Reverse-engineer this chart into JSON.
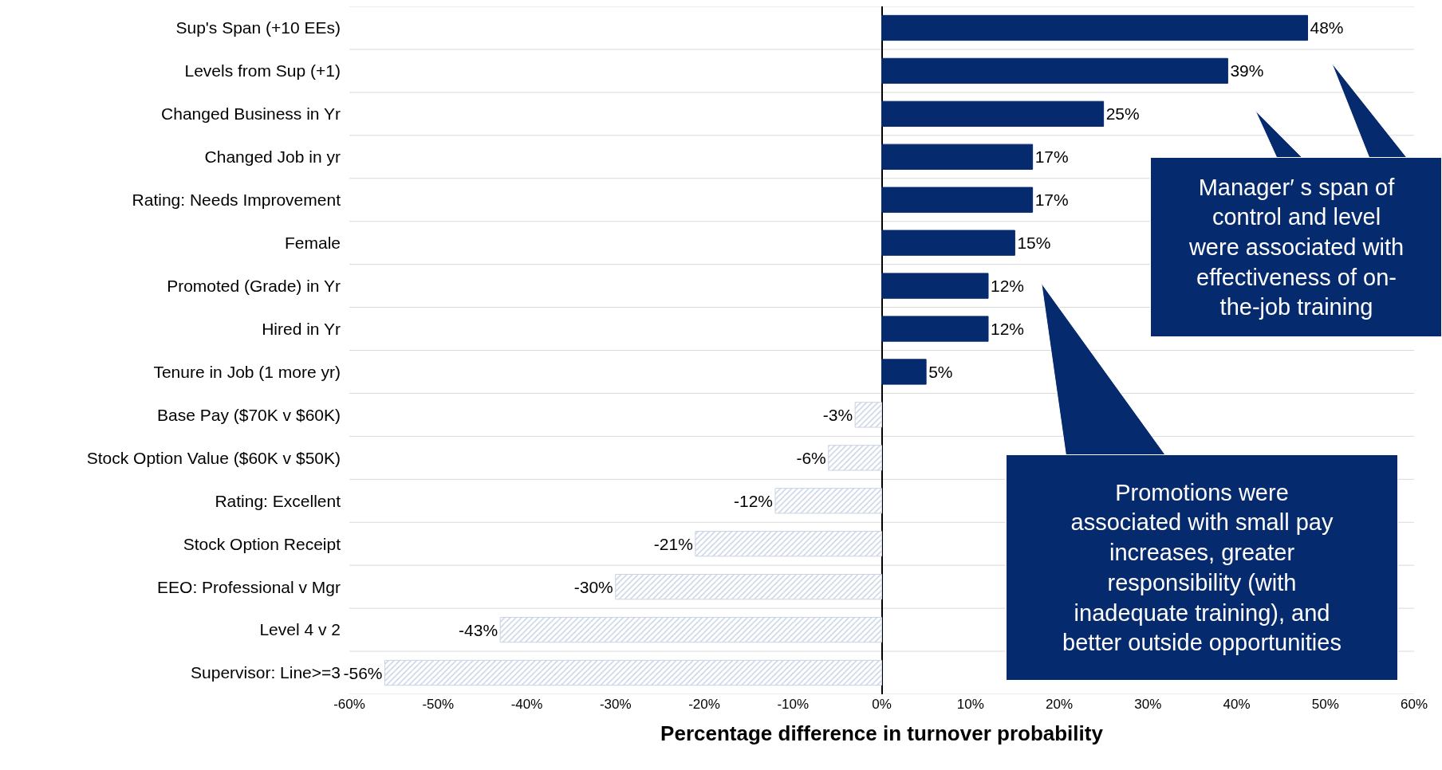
{
  "chart_data": {
    "type": "bar",
    "orientation": "horizontal",
    "categories": [
      "Sup's Span (+10 EEs)",
      "Levels from Sup (+1)",
      "Changed Business in Yr",
      "Changed Job in yr",
      "Rating: Needs Improvement",
      "Female",
      "Promoted (Grade) in Yr",
      "Hired in Yr",
      "Tenure in Job (1 more yr)",
      "Base Pay ($70K v $60K)",
      "Stock Option Value ($60K v $50K)",
      "Rating: Excellent",
      "Stock Option Receipt",
      "EEO: Professional v Mgr",
      "Level 4 v 2",
      "Supervisor: Line>=3"
    ],
    "values": [
      48,
      39,
      25,
      17,
      17,
      15,
      12,
      12,
      5,
      -3,
      -6,
      -12,
      -21,
      -30,
      -43,
      -56
    ],
    "value_labels": [
      "48%",
      "39%",
      "25%",
      "17%",
      "17%",
      "15%",
      "12%",
      "12%",
      "5%",
      "-3%",
      "-6%",
      "-12%",
      "-21%",
      "-30%",
      "-43%",
      "-56%"
    ],
    "colors": [
      "#062a6e",
      "#062a6e",
      "#062a6e",
      "#062a6e",
      "#062a6e",
      "#062a6e",
      "#062a6e",
      "#062a6e",
      "#062a6e",
      "#c9d3e3",
      "#c9d3e3",
      "#c9d3e3",
      "#c9d3e3",
      "#c9d3e3",
      "#c9d3e3",
      "#c9d3e3"
    ],
    "xlabel": "Percentage difference in turnover probability",
    "xlim": [
      -60,
      60
    ],
    "xticks": [
      {
        "value": -60,
        "label": "-60%"
      },
      {
        "value": -50,
        "label": "-50%"
      },
      {
        "value": -40,
        "label": "-40%"
      },
      {
        "value": -30,
        "label": "-30%"
      },
      {
        "value": -20,
        "label": "-20%"
      },
      {
        "value": -10,
        "label": "-10%"
      },
      {
        "value": 0,
        "label": "0%"
      },
      {
        "value": 10,
        "label": "10%"
      },
      {
        "value": 20,
        "label": "20%"
      },
      {
        "value": 30,
        "label": "30%"
      },
      {
        "value": 40,
        "label": "40%"
      },
      {
        "value": 50,
        "label": "50%"
      },
      {
        "value": 60,
        "label": "60%"
      }
    ],
    "grid": "y",
    "annotations": [
      "Manager′ s span of\ncontrol and level\nwere associated with\neffectiveness of on-\nthe-job training",
      "Promotions were\nassociated with small pay\nincreases, greater\nresponsibility (with\ninadequate training), and\nbetter outside opportunities"
    ]
  }
}
